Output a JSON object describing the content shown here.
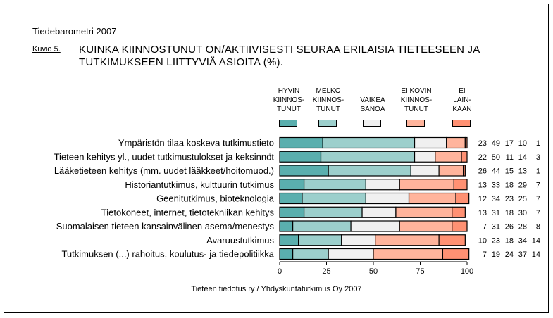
{
  "header": {
    "pre_title": "Tiedebarometri 2007",
    "figure_label": "Kuvio 5.",
    "title": "KUINKA KIINNOSTUNUT ON/AKTIIVISESTI SEURAA ERILAISIA TIETEESEEN JA TUTKIMUKSEEN LIITTYVIÄ ASIOITA (%)."
  },
  "footer": {
    "source": "Tieteen tiedotus ry / Yhdyskuntatutkimus Oy 2007"
  },
  "chart_data": {
    "type": "bar",
    "orientation": "horizontal",
    "stacked": true,
    "title": "KUINKA KIINNOSTUNUT ON/AKTIIVISESTI SEURAA ERILAISIA TIETEESEEN JA TUTKIMUKSEEN LIITTYVIÄ ASIOITA (%).",
    "xlabel": "",
    "ylabel": "",
    "xlim": [
      0,
      100
    ],
    "x_ticks": [
      0,
      25,
      50,
      75,
      100
    ],
    "grid": false,
    "legend_position": "top",
    "categories": [
      "Ympäristön tilaa koskeva tutkimustieto",
      "Tieteen kehitys yl., uudet tutkimustulokset ja keksinnöt",
      "Lääketieteen kehitys (mm. uudet lääkkeet/hoitomuod.)",
      "Historiantutkimus, kulttuurin tutkimus",
      "Geenitutkimus, bioteknologia",
      "Tietokoneet, internet, tietotekniikan kehitys",
      "Suomalaisen tieteen kansainvälinen asema/menestys",
      "Avaruustutkimus",
      "Tutkimuksen (...) rahoitus, koulutus- ja tiedepolitiikka"
    ],
    "series": [
      {
        "name": "HYVIN\nKIINNOS-\nTUNUT",
        "color": "#5aafae",
        "values": [
          23,
          22,
          26,
          13,
          12,
          13,
          7,
          10,
          7
        ]
      },
      {
        "name": "MELKO\nKIINNOS-\nTUNUT",
        "color": "#9ccfcc",
        "values": [
          49,
          50,
          44,
          33,
          34,
          31,
          31,
          23,
          19
        ]
      },
      {
        "name": "VAIKEA\nSANOA",
        "color": "#f0f0f0",
        "values": [
          17,
          11,
          15,
          18,
          23,
          18,
          26,
          18,
          24
        ]
      },
      {
        "name": "EI KOVIN\nKIINNOS-\nTUNUT",
        "color": "#ffb49c",
        "values": [
          10,
          14,
          13,
          29,
          25,
          30,
          28,
          34,
          37
        ]
      },
      {
        "name": "EI\nLAIN-\nKAAN",
        "color": "#ff9173",
        "values": [
          1,
          3,
          1,
          7,
          7,
          7,
          8,
          14,
          14
        ]
      }
    ]
  }
}
